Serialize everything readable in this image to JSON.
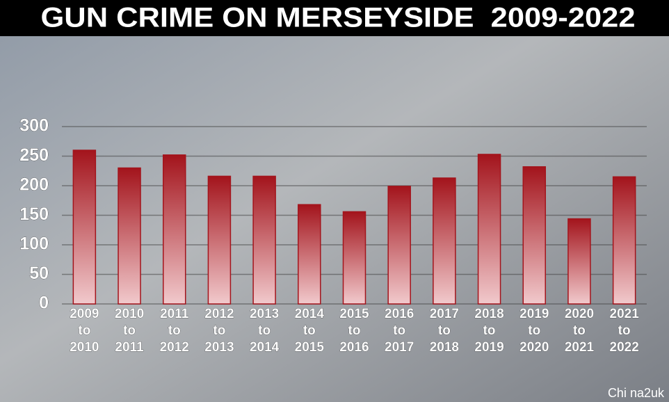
{
  "chart_data": {
    "type": "bar",
    "title": "GUN CRIME ON MERSEYSIDE  2009-2022",
    "categories": [
      [
        "2009",
        "to",
        "2010"
      ],
      [
        "2010",
        "to",
        "2011"
      ],
      [
        "2011",
        "to",
        "2012"
      ],
      [
        "2012",
        "to",
        "2013"
      ],
      [
        "2013",
        "to",
        "2014"
      ],
      [
        "2014",
        "to",
        "2015"
      ],
      [
        "2015",
        "to",
        "2016"
      ],
      [
        "2016",
        "to",
        "2017"
      ],
      [
        "2017",
        "to",
        "2018"
      ],
      [
        "2018",
        "to",
        "2019"
      ],
      [
        "2019",
        "to",
        "2020"
      ],
      [
        "2020",
        "to",
        "2021"
      ],
      [
        "2021",
        "to",
        "2022"
      ]
    ],
    "values": [
      260,
      230,
      252,
      216,
      216,
      168,
      156,
      199,
      213,
      253,
      232,
      144,
      215
    ],
    "color": "#a3141c",
    "ylim": [
      0,
      300
    ],
    "yticks": [
      0,
      50,
      100,
      150,
      200,
      250,
      300
    ],
    "grid": true
  },
  "watermark": "Chi na2uk"
}
